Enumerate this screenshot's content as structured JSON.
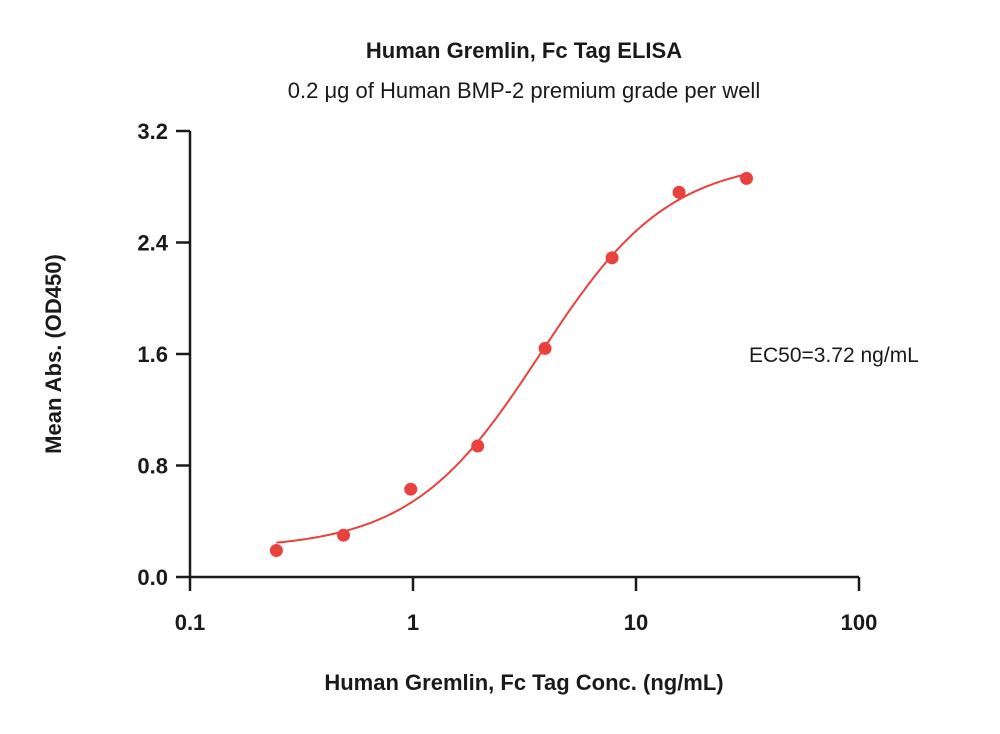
{
  "chart_data": {
    "type": "scatter",
    "title": "Human Gremlin, Fc Tag ELISA",
    "subtitle": "0.2 μg of Human BMP-2 premium grade per well",
    "xlabel": "Human Gremlin, Fc Tag Conc. (ng/mL)",
    "ylabel": "Mean Abs. (OD450)",
    "xscale": "log",
    "xlim": [
      0.1,
      100
    ],
    "ylim": [
      0.0,
      3.2
    ],
    "xticks": [
      0.1,
      1,
      10,
      100
    ],
    "xtick_labels": [
      "0.1",
      "1",
      "10",
      "100"
    ],
    "yticks": [
      0.0,
      0.8,
      1.6,
      2.4,
      3.2
    ],
    "ytick_labels": [
      "0.0",
      "0.8",
      "1.6",
      "2.4",
      "3.2"
    ],
    "grid": false,
    "legend": "none",
    "color": "#e8413e",
    "series": [
      {
        "x": [
          0.244,
          0.488,
          0.977,
          1.95,
          3.91,
          7.81,
          15.6,
          31.3
        ],
        "y": [
          0.19,
          0.3,
          0.63,
          0.94,
          1.64,
          2.29,
          2.76,
          2.86
        ]
      }
    ],
    "fit": {
      "model": "4PL",
      "bottom": 0.2,
      "top": 3.0,
      "ec50": 3.72,
      "hill": 1.5
    },
    "annotation": "EC50=3.72 ng/mL"
  }
}
